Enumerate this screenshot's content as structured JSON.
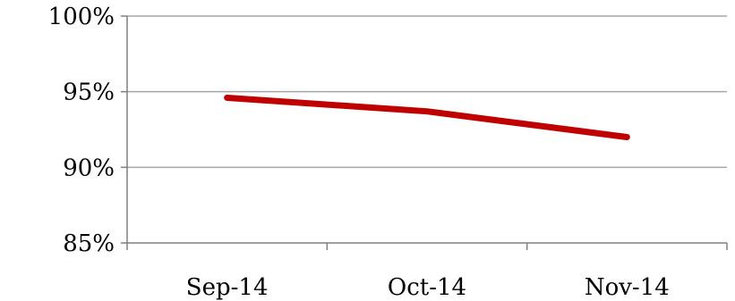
{
  "chart_data": {
    "type": "line",
    "categories": [
      "Sep-14",
      "Oct-14",
      "Nov-14"
    ],
    "series": [
      {
        "values": [
          94.6,
          93.7,
          92.0
        ],
        "color": "#c00000"
      }
    ],
    "ylim": [
      85,
      100
    ],
    "y_ticks": [
      85,
      90,
      95,
      100
    ],
    "y_tick_labels": [
      "85%",
      "90%",
      "95%",
      "100%"
    ],
    "grid": true,
    "legend": "none"
  }
}
